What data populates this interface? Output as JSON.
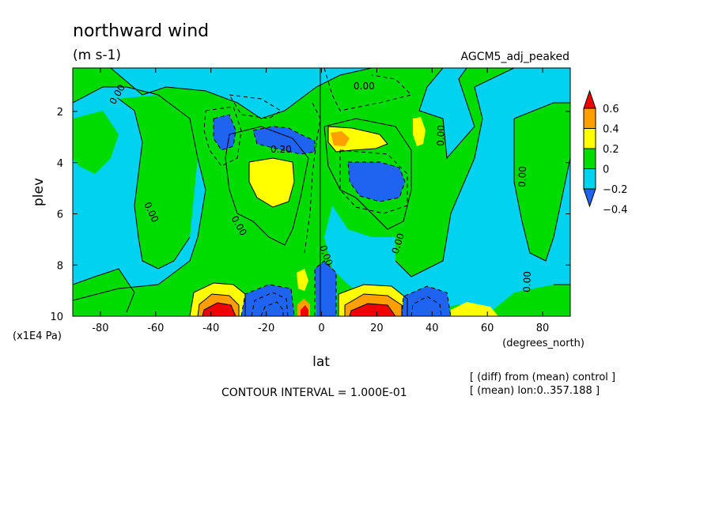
{
  "chart_data": {
    "type": "heatmap",
    "title": "northward wind",
    "units": "(m s-1)",
    "run_label": "AGCM5_adj_peaked",
    "xlabel": "lat",
    "xunit": "(degrees_north)",
    "ylabel": "plev",
    "yunit": "(x1E4 Pa)",
    "xlim": [
      -90,
      90
    ],
    "ylim": [
      0.3,
      10
    ],
    "y_inverted": true,
    "x_ticks": [
      -80,
      -60,
      -40,
      -20,
      0,
      20,
      40,
      60,
      80
    ],
    "y_ticks": [
      2,
      4,
      6,
      8,
      10
    ],
    "colorbar": {
      "labels": [
        "0.6",
        "0.4",
        "0.2",
        "0",
        "−0.2",
        "−0.4"
      ],
      "levels": [
        -0.4,
        -0.2,
        0,
        0.2,
        0.4,
        0.6
      ],
      "colors": [
        "#1e64f0",
        "#00d2f0",
        "#00dc00",
        "#ffff00",
        "#ffa000",
        "#f00000"
      ]
    },
    "contour_labels": [
      "0.00",
      "0.00",
      "0.00",
      "0.00",
      "0.00",
      "0.00",
      "0.00",
      "0.00",
      "0.00",
      "0.20"
    ],
    "annotations": {
      "contour_interval": "CONTOUR INTERVAL = 1.000E-01",
      "diff_note": "[ (diff) from (mean) control ]",
      "mean_note": "[ (mean) lon:0..357.188 ]"
    },
    "features": [
      {
        "lat": -37,
        "plev": 4.6,
        "value": 0.25
      },
      {
        "lat": -10,
        "plev": 3.1,
        "value": -0.25
      },
      {
        "lat": -37,
        "plev": 3.1,
        "value": -0.25
      },
      {
        "lat": 6,
        "plev": 3.0,
        "value": 0.3
      },
      {
        "lat": 24,
        "plev": 2.6,
        "value": 0.3
      },
      {
        "lat": 20,
        "plev": 4.5,
        "value": -0.25
      },
      {
        "lat": -40,
        "plev": 9.85,
        "value": 0.6
      },
      {
        "lat": -15,
        "plev": 9.85,
        "value": -0.5
      },
      {
        "lat": -5,
        "plev": 9.85,
        "value": 0.6
      },
      {
        "lat": 17,
        "plev": 9.85,
        "value": 0.6
      },
      {
        "lat": 38,
        "plev": 9.85,
        "value": -0.45
      },
      {
        "lat": 56,
        "plev": 9.9,
        "value": 0.2
      },
      {
        "lat": -5,
        "plev": 8.5,
        "value": 0.35
      }
    ]
  }
}
